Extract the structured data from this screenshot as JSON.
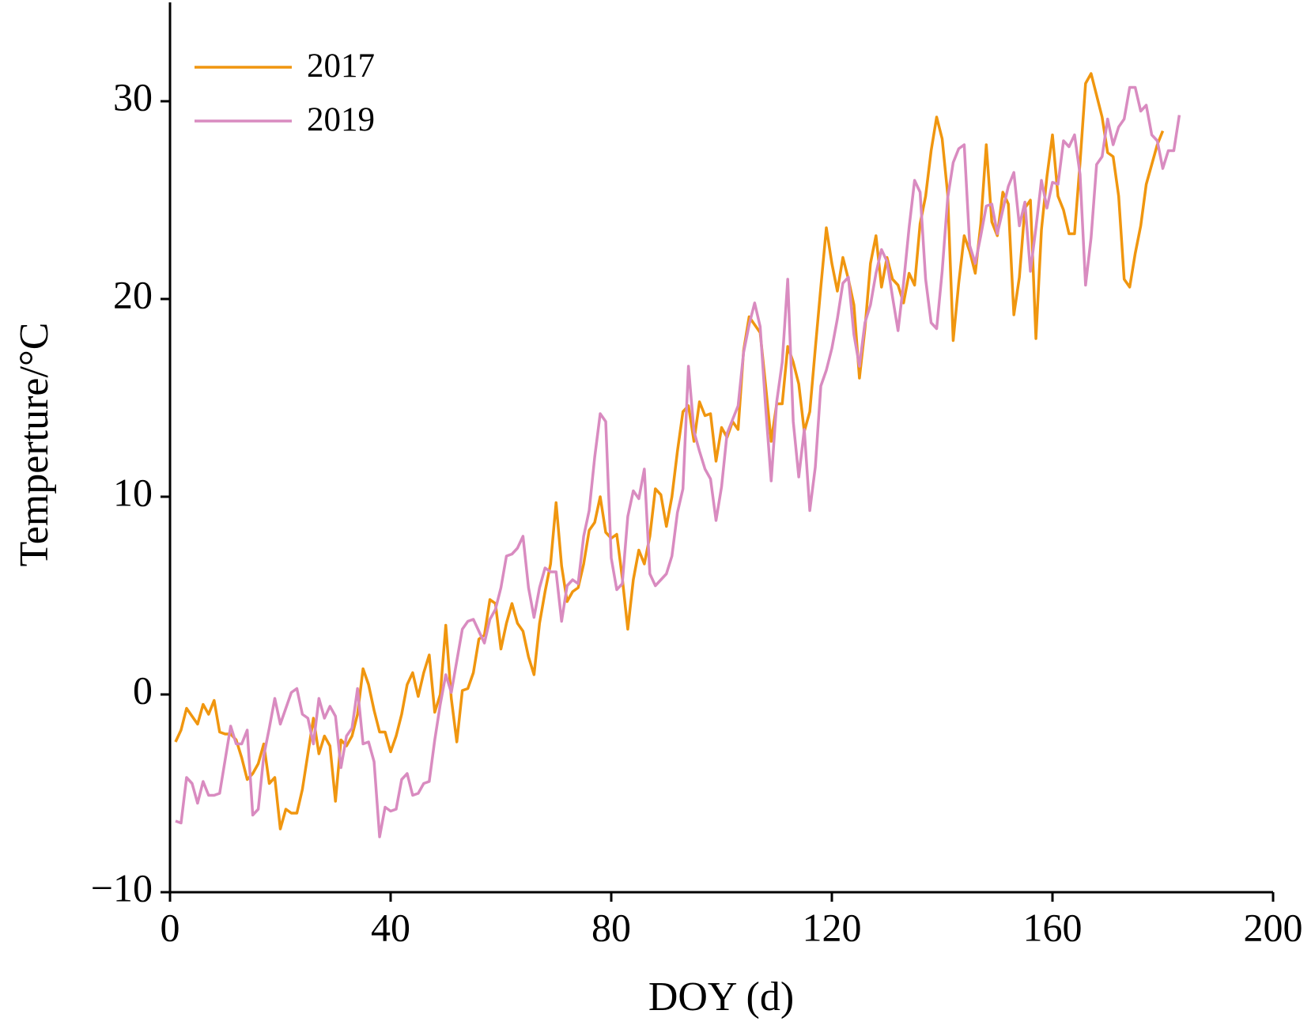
{
  "chart_data": {
    "type": "line",
    "x_label": "DOY (d)",
    "y_label": "Temperture/°C",
    "xlim": [
      0,
      200
    ],
    "xticks": [
      0,
      40,
      80,
      120,
      160,
      200
    ],
    "ylim": [
      -10,
      35
    ],
    "yticks": [
      {
        "value": -10,
        "label": "−10"
      },
      0,
      10,
      20,
      30
    ],
    "grid": false,
    "legend": "upper left",
    "series": [
      {
        "name": "2017",
        "color": "#f0960f",
        "x": [
          1,
          2,
          3,
          4,
          5,
          6,
          7,
          8,
          9,
          10,
          11,
          12,
          13,
          14,
          15,
          16,
          17,
          18,
          19,
          20,
          21,
          22,
          23,
          24,
          25,
          26,
          27,
          28,
          29,
          30,
          31,
          32,
          33,
          34,
          35,
          36,
          37,
          38,
          39,
          40,
          41,
          42,
          43,
          44,
          45,
          46,
          47,
          48,
          49,
          50,
          51,
          52,
          53,
          54,
          55,
          56,
          57,
          58,
          59,
          60,
          61,
          62,
          63,
          64,
          65,
          66,
          67,
          68,
          69,
          70,
          71,
          72,
          73,
          74,
          75,
          76,
          77,
          78,
          79,
          80,
          81,
          82,
          83,
          84,
          85,
          86,
          87,
          88,
          89,
          90,
          91,
          92,
          93,
          94,
          95,
          96,
          97,
          98,
          99,
          100,
          101,
          102,
          103,
          104,
          105,
          106,
          107,
          108,
          109,
          110,
          111,
          112,
          113,
          114,
          115,
          116,
          117,
          118,
          119,
          120,
          121,
          122,
          123,
          124,
          125,
          126,
          127,
          128,
          129,
          130,
          131,
          132,
          133,
          134,
          135,
          136,
          137,
          138,
          139,
          140,
          141,
          142,
          143,
          144,
          145,
          146,
          147,
          148,
          149,
          150,
          151,
          152,
          153,
          154,
          155,
          156,
          157,
          158,
          159,
          160,
          161,
          162,
          163,
          164,
          165,
          166,
          167,
          168,
          169,
          170,
          171,
          172,
          173,
          174,
          175,
          176,
          177,
          178,
          179,
          180
        ],
        "values": [
          -2.4,
          -1.8,
          -0.7,
          -1.1,
          -1.5,
          -0.5,
          -1.0,
          -0.3,
          -1.9,
          -2.0,
          -2.0,
          -2.3,
          -3.2,
          -4.3,
          -4.0,
          -3.5,
          -2.5,
          -4.5,
          -4.2,
          -6.8,
          -5.8,
          -6.0,
          -6.0,
          -4.8,
          -3.0,
          -1.2,
          -3.0,
          -2.1,
          -2.6,
          -5.4,
          -2.3,
          -2.6,
          -2.1,
          -1.0,
          1.3,
          0.5,
          -0.8,
          -1.9,
          -1.9,
          -2.9,
          -2.1,
          -1.0,
          0.5,
          1.1,
          -0.1,
          1.1,
          2.0,
          -0.9,
          0.0,
          3.5,
          -0.2,
          -2.4,
          0.2,
          0.3,
          1.1,
          2.8,
          3.0,
          4.8,
          4.6,
          2.3,
          3.6,
          4.6,
          3.6,
          3.2,
          1.9,
          1.0,
          3.6,
          5.2,
          6.6,
          9.7,
          6.5,
          4.7,
          5.2,
          5.4,
          6.6,
          8.3,
          8.7,
          10.0,
          8.2,
          7.9,
          8.1,
          5.9,
          3.3,
          5.8,
          7.3,
          6.6,
          8.0,
          10.4,
          10.1,
          8.5,
          10.0,
          12.3,
          14.3,
          14.6,
          12.8,
          14.8,
          14.1,
          14.2,
          11.8,
          13.5,
          13.0,
          13.8,
          13.4,
          17.4,
          19.1,
          18.7,
          18.3,
          15.6,
          12.8,
          14.7,
          14.7,
          17.6,
          16.8,
          15.7,
          13.3,
          14.3,
          17.5,
          20.6,
          23.6,
          21.8,
          20.4,
          22.1,
          21.0,
          19.7,
          16.0,
          18.5,
          21.8,
          23.2,
          20.6,
          22.1,
          21.0,
          20.7,
          19.8,
          21.3,
          20.7,
          23.8,
          25.2,
          27.5,
          29.2,
          28.1,
          25.3,
          17.9,
          20.8,
          23.2,
          22.4,
          21.3,
          23.8,
          27.8,
          23.9,
          23.2,
          25.4,
          24.8,
          19.2,
          21.1,
          24.6,
          25.0,
          18.0,
          23.5,
          26.2,
          28.3,
          25.2,
          24.5,
          23.3,
          23.3,
          26.9,
          30.9,
          31.4,
          30.3,
          29.2,
          27.4,
          27.2,
          25.2,
          21.0,
          20.6,
          22.3,
          23.7,
          25.8,
          26.8,
          27.8,
          28.5
        ]
      },
      {
        "name": "2019",
        "color": "#d98bc0",
        "x": [
          1,
          2,
          3,
          4,
          5,
          6,
          7,
          8,
          9,
          10,
          11,
          12,
          13,
          14,
          15,
          16,
          17,
          18,
          19,
          20,
          21,
          22,
          23,
          24,
          25,
          26,
          27,
          28,
          29,
          30,
          31,
          32,
          33,
          34,
          35,
          36,
          37,
          38,
          39,
          40,
          41,
          42,
          43,
          44,
          45,
          46,
          47,
          48,
          49,
          50,
          51,
          52,
          53,
          54,
          55,
          56,
          57,
          58,
          59,
          60,
          61,
          62,
          63,
          64,
          65,
          66,
          67,
          68,
          69,
          70,
          71,
          72,
          73,
          74,
          75,
          76,
          77,
          78,
          79,
          80,
          81,
          82,
          83,
          84,
          85,
          86,
          87,
          88,
          89,
          90,
          91,
          92,
          93,
          94,
          95,
          96,
          97,
          98,
          99,
          100,
          101,
          102,
          103,
          104,
          105,
          106,
          107,
          108,
          109,
          110,
          111,
          112,
          113,
          114,
          115,
          116,
          117,
          118,
          119,
          120,
          121,
          122,
          123,
          124,
          125,
          126,
          127,
          128,
          129,
          130,
          131,
          132,
          133,
          134,
          135,
          136,
          137,
          138,
          139,
          140,
          141,
          142,
          143,
          144,
          145,
          146,
          147,
          148,
          149,
          150,
          151,
          152,
          153,
          154,
          155,
          156,
          157,
          158,
          159,
          160,
          161,
          162,
          163,
          164,
          165,
          166,
          167,
          168,
          169,
          170,
          171,
          172,
          173,
          174,
          175,
          176,
          177,
          178,
          179,
          180,
          181,
          182,
          183
        ],
        "values": [
          -6.4,
          -6.5,
          -4.2,
          -4.5,
          -5.5,
          -4.4,
          -5.1,
          -5.1,
          -5.0,
          -3.3,
          -1.6,
          -2.5,
          -2.5,
          -1.8,
          -6.1,
          -5.8,
          -3.1,
          -1.7,
          -0.2,
          -1.5,
          -0.7,
          0.1,
          0.3,
          -1.0,
          -1.2,
          -2.5,
          -0.2,
          -1.2,
          -0.6,
          -1.1,
          -3.7,
          -2.1,
          -1.7,
          0.3,
          -2.5,
          -2.4,
          -3.4,
          -7.2,
          -5.7,
          -5.9,
          -5.8,
          -4.3,
          -4.0,
          -5.1,
          -5.0,
          -4.5,
          -4.4,
          -2.3,
          -0.5,
          1.0,
          0.1,
          1.7,
          3.3,
          3.7,
          3.8,
          3.2,
          2.6,
          3.8,
          4.3,
          5.4,
          7.0,
          7.1,
          7.4,
          8.0,
          5.4,
          3.9,
          5.4,
          6.4,
          6.2,
          6.2,
          3.7,
          5.5,
          5.8,
          5.6,
          8.0,
          9.3,
          12.0,
          14.2,
          13.8,
          6.9,
          5.3,
          5.6,
          9.0,
          10.3,
          9.9,
          11.4,
          6.1,
          5.5,
          5.8,
          6.1,
          7.0,
          9.2,
          10.4,
          16.6,
          13.3,
          12.3,
          11.4,
          10.9,
          8.8,
          10.5,
          13.2,
          13.9,
          14.6,
          17.3,
          18.7,
          19.8,
          18.6,
          14.5,
          10.8,
          14.8,
          16.8,
          21.0,
          13.8,
          11.0,
          13.4,
          9.3,
          11.5,
          15.6,
          16.4,
          17.5,
          19.0,
          20.8,
          21.1,
          18.2,
          16.6,
          18.8,
          19.7,
          21.3,
          22.5,
          21.9,
          20.1,
          18.4,
          20.8,
          23.6,
          26.0,
          25.4,
          21.0,
          18.8,
          18.5,
          21.4,
          25.1,
          26.9,
          27.6,
          27.8,
          22.7,
          21.8,
          23.2,
          24.7,
          24.8,
          23.3,
          24.5,
          25.7,
          26.4,
          23.7,
          24.9,
          21.4,
          23.6,
          26.0,
          24.6,
          25.9,
          25.8,
          28.0,
          27.7,
          28.3,
          26.3,
          20.7,
          23.1,
          26.8,
          27.2,
          29.1,
          27.8,
          28.7,
          29.1,
          30.7,
          30.7,
          29.5,
          29.8,
          28.3,
          28.0,
          26.6,
          27.5,
          27.5,
          29.3
        ]
      }
    ]
  }
}
